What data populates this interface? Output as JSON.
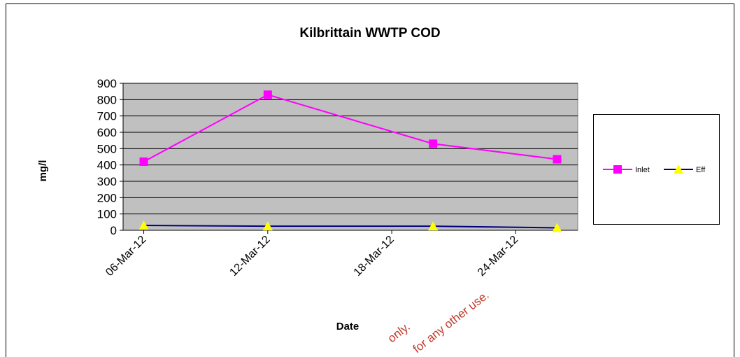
{
  "chart_data": {
    "type": "line",
    "title": "Kilbrittain WWTP COD",
    "x_label": "Date",
    "y_label": "mg/l",
    "x": [
      "2012-03-06",
      "2012-03-12",
      "2012-03-20",
      "2012-03-26"
    ],
    "series": [
      {
        "name": "Inlet",
        "color": "#ff00ff",
        "marker": "square",
        "marker_color": "#ff00ff",
        "values": [
          420,
          830,
          530,
          435
        ]
      },
      {
        "name": "Eff",
        "color": "#000080",
        "marker": "triangle",
        "marker_color": "#ffff00",
        "values": [
          30,
          25,
          25,
          15
        ]
      }
    ],
    "xlim": [
      "2012-03-05",
      "2012-03-27"
    ],
    "xticks": [
      {
        "value": "2012-03-06",
        "label": "06-Mar-12"
      },
      {
        "value": "2012-03-12",
        "label": "12-Mar-12"
      },
      {
        "value": "2012-03-18",
        "label": "18-Mar-12"
      },
      {
        "value": "2012-03-24",
        "label": "24-Mar-12"
      }
    ],
    "ylim": [
      0,
      900
    ],
    "yticks": [
      0,
      100,
      200,
      300,
      400,
      500,
      600,
      700,
      800,
      900
    ],
    "grid": true,
    "plot_background": "#c0c0c0",
    "legend": "right",
    "annotations": [
      "only.",
      "for any other use."
    ]
  }
}
